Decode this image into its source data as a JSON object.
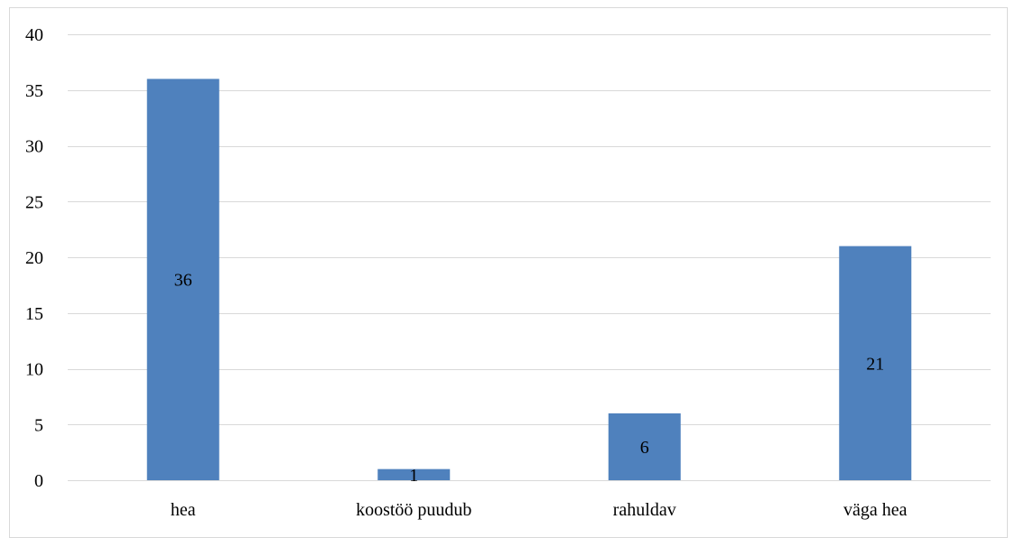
{
  "chart_data": {
    "type": "bar",
    "title": "",
    "xlabel": "",
    "ylabel": "",
    "categories": [
      "hea",
      "koostöö puudub",
      "rahuldav",
      "väga hea"
    ],
    "values": [
      36,
      1,
      6,
      21
    ],
    "data_labels": [
      "36",
      "1",
      "6",
      "21"
    ],
    "ylim": [
      0,
      40
    ],
    "yticks": [
      0,
      5,
      10,
      15,
      20,
      25,
      30,
      35,
      40
    ],
    "ytick_labels": [
      "0",
      "5",
      "10",
      "15",
      "20",
      "25",
      "30",
      "35",
      "40"
    ],
    "grid": true,
    "legend": "none",
    "bar_color": "#4F81BD",
    "grid_color": "#d9d9d9"
  }
}
